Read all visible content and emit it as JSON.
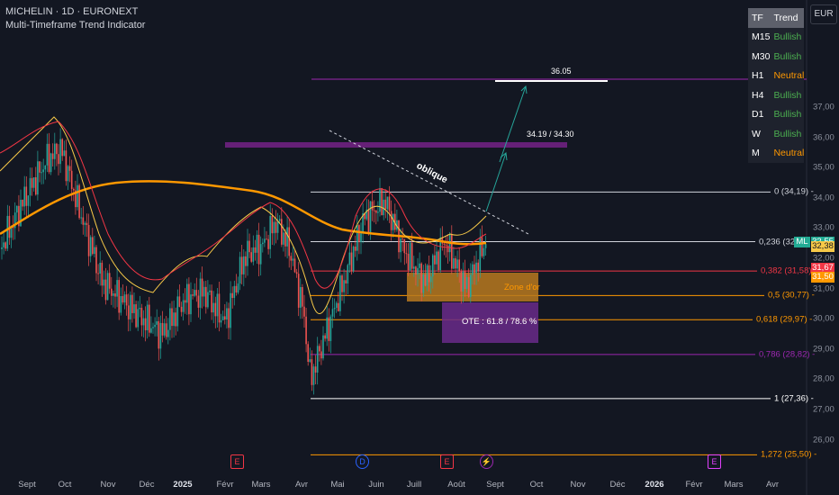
{
  "header": {
    "symbol_line": "MICHELIN · 1D · EURONEXT",
    "indicator_name": "Multi-Timeframe Trend Indicator"
  },
  "currency_button": "EUR",
  "trend_table": {
    "header": [
      "TF",
      "Trend"
    ],
    "rows": [
      {
        "tf": "M15",
        "trend": "Bullish"
      },
      {
        "tf": "M30",
        "trend": "Bullish"
      },
      {
        "tf": "H1",
        "trend": "Neutral"
      },
      {
        "tf": "H4",
        "trend": "Bullish"
      },
      {
        "tf": "D1",
        "trend": "Bullish"
      },
      {
        "tf": "W",
        "trend": "Bullish"
      },
      {
        "tf": "M",
        "trend": "Neutral"
      }
    ]
  },
  "price_axis": [
    "37,00",
    "36,00",
    "35,00",
    "34,00",
    "33,00",
    "32,00",
    "31,00",
    "30,00",
    "29,00",
    "28,00",
    "27,00",
    "26,00"
  ],
  "price_tags": [
    {
      "label": "ML",
      "value": "32,55",
      "color": "#22ab94"
    },
    {
      "value": "32,38",
      "color": "#f7c948"
    },
    {
      "value": "31,67",
      "color": "#f23645"
    },
    {
      "value": "31,50",
      "color": "#ff9800"
    }
  ],
  "time_axis": [
    {
      "label": "Sept",
      "bold": false
    },
    {
      "label": "Oct",
      "bold": false
    },
    {
      "label": "Nov",
      "bold": false
    },
    {
      "label": "Déc",
      "bold": false
    },
    {
      "label": "2025",
      "bold": true
    },
    {
      "label": "Févr",
      "bold": false
    },
    {
      "label": "Mars",
      "bold": false
    },
    {
      "label": "Avr",
      "bold": false
    },
    {
      "label": "Mai",
      "bold": false
    },
    {
      "label": "Juin",
      "bold": false
    },
    {
      "label": "Juill",
      "bold": false
    },
    {
      "label": "Août",
      "bold": false
    },
    {
      "label": "Sept",
      "bold": false
    },
    {
      "label": "Oct",
      "bold": false
    },
    {
      "label": "Nov",
      "bold": false
    },
    {
      "label": "Déc",
      "bold": false
    },
    {
      "label": "2026",
      "bold": true
    },
    {
      "label": "Févr",
      "bold": false
    },
    {
      "label": "Mars",
      "bold": false
    },
    {
      "label": "Avr",
      "bold": false
    }
  ],
  "fib_levels": [
    {
      "label": "0 (34,19)",
      "price": 34.19,
      "color": "#d1d4dc"
    },
    {
      "label": "0,236 (32,",
      "price": 32.55,
      "color": "#d1d4dc"
    },
    {
      "label": "0,382 (31,58)",
      "price": 31.58,
      "color": "#f23645"
    },
    {
      "label": "0,5 (30,77)",
      "price": 30.77,
      "color": "#ff9800"
    },
    {
      "label": "0,618 (29,97)",
      "price": 29.97,
      "color": "#ff9800"
    },
    {
      "label": "0,786 (28,82)",
      "price": 28.82,
      "color": "#9c27b0"
    },
    {
      "label": "1 (27,36)",
      "price": 27.36,
      "color": "#ffffff"
    },
    {
      "label": "1,272 (25,50)",
      "price": 25.5,
      "color": "#ff9800"
    }
  ],
  "annotations": {
    "target_label": "36.05",
    "range_label": "34.19 / 34.30",
    "trendline_label": "oblique",
    "zone_dor": "Zone d'or",
    "ote": "OTE : 61.8 / 78.6 %"
  },
  "events": [
    {
      "icon": "E",
      "color": "#f23645"
    },
    {
      "icon": "D",
      "color": "#2962ff"
    },
    {
      "icon": "E",
      "color": "#f23645"
    },
    {
      "icon": "⚡",
      "color": "#9c27b0"
    },
    {
      "icon": "E",
      "color": "#e040fb"
    }
  ],
  "chart_data": {
    "type": "candlestick",
    "title": "MICHELIN · 1D · EURONEXT",
    "currency": "EUR",
    "ylim": [
      25.5,
      37.5
    ],
    "x_range": [
      "2024-08-20",
      "2026-04-10"
    ],
    "close_path": [
      {
        "date": "2024-08-20",
        "close": 32.3
      },
      {
        "date": "2024-09-10",
        "close": 34.2
      },
      {
        "date": "2024-09-25",
        "close": 35.3
      },
      {
        "date": "2024-10-05",
        "close": 35.6
      },
      {
        "date": "2024-10-20",
        "close": 33.4
      },
      {
        "date": "2024-11-05",
        "close": 31.2
      },
      {
        "date": "2024-11-20",
        "close": 30.6
      },
      {
        "date": "2024-12-05",
        "close": 30.0
      },
      {
        "date": "2024-12-20",
        "close": 29.5
      },
      {
        "date": "2025-01-05",
        "close": 30.6
      },
      {
        "date": "2025-01-20",
        "close": 30.9
      },
      {
        "date": "2025-02-05",
        "close": 29.9
      },
      {
        "date": "2025-02-20",
        "close": 32.1
      },
      {
        "date": "2025-03-05",
        "close": 32.4
      },
      {
        "date": "2025-03-15",
        "close": 33.2
      },
      {
        "date": "2025-03-25",
        "close": 32.4
      },
      {
        "date": "2025-04-05",
        "close": 30.2
      },
      {
        "date": "2025-04-10",
        "close": 28.0
      },
      {
        "date": "2025-04-20",
        "close": 29.3
      },
      {
        "date": "2025-05-05",
        "close": 31.2
      },
      {
        "date": "2025-05-20",
        "close": 33.3
      },
      {
        "date": "2025-06-05",
        "close": 33.9
      },
      {
        "date": "2025-06-20",
        "close": 32.2
      },
      {
        "date": "2025-07-05",
        "close": 31.2
      },
      {
        "date": "2025-07-20",
        "close": 32.6
      },
      {
        "date": "2025-08-05",
        "close": 31.0
      },
      {
        "date": "2025-08-20",
        "close": 32.6
      }
    ],
    "moving_averages": [
      {
        "color": "#ff9800",
        "last": 31.5
      },
      {
        "color": "#f7c948",
        "last": 32.38
      },
      {
        "color": "#f23645",
        "last": 31.67
      }
    ]
  }
}
